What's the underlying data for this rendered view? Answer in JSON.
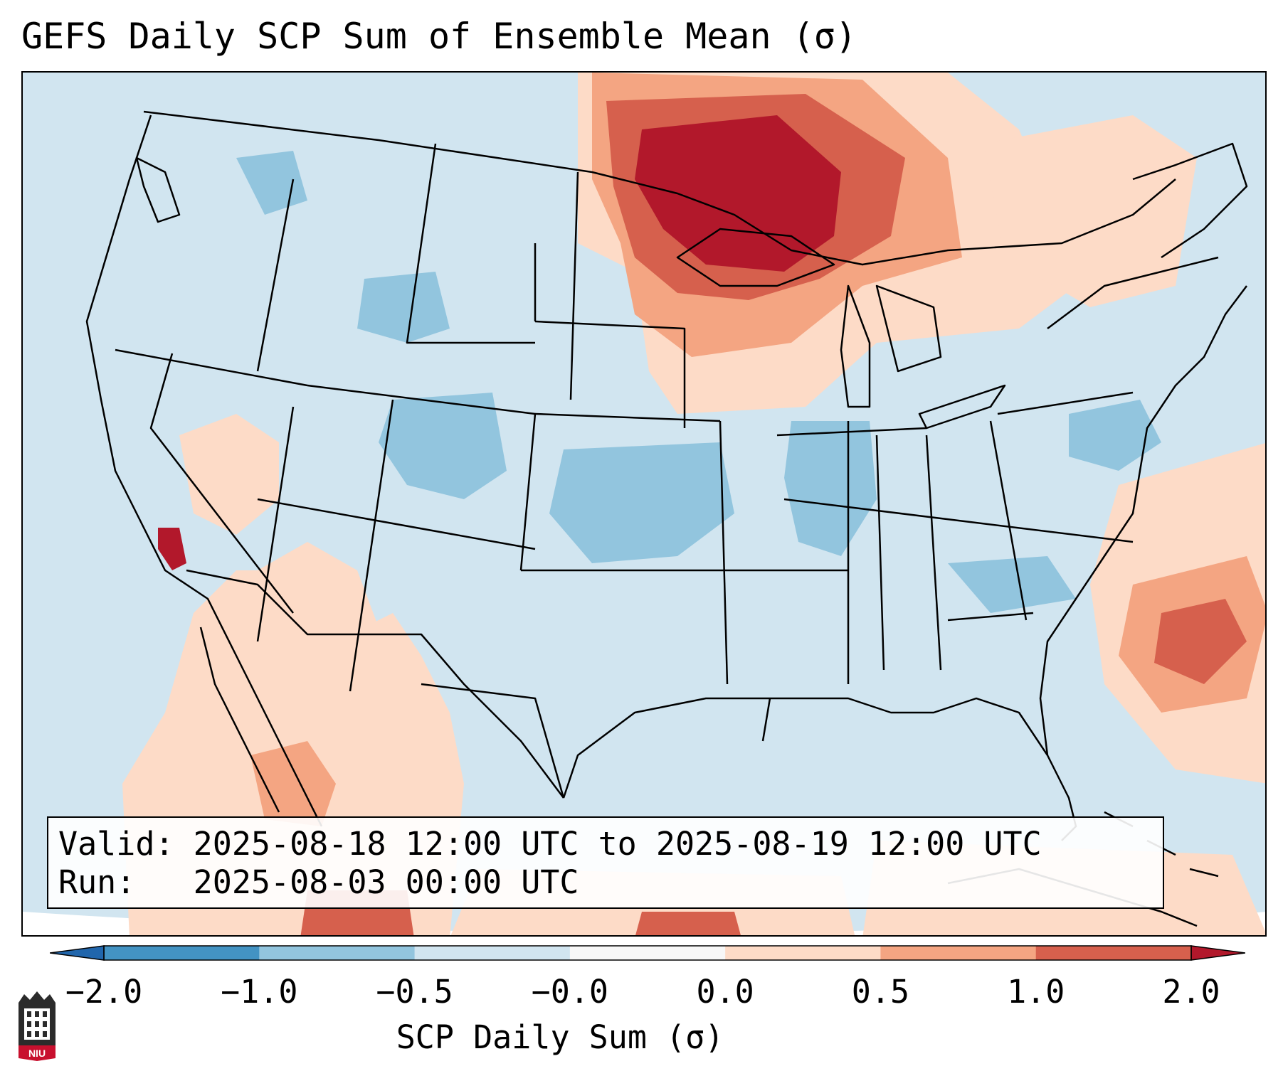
{
  "title": "GEFS Daily SCP Sum of Ensemble Mean (σ)",
  "info": {
    "valid_line": "Valid: 2025-08-18 12:00 UTC to 2025-08-19 12:00 UTC",
    "run_line": "Run:   2025-08-03 00:00 UTC"
  },
  "colorbar": {
    "label": "SCP Daily Sum (σ)",
    "ticks": [
      "−2.0",
      "−1.0",
      "−0.5",
      "−0.0",
      "0.0",
      "0.5",
      "1.0",
      "2.0"
    ],
    "colors": [
      "#4393c3",
      "#92c5de",
      "#d1e5f0",
      "#f7f7f7",
      "#fddbc7",
      "#f4a582",
      "#d6604d"
    ],
    "extend_low_color": "#2166ac",
    "extend_high_color": "#b2182b"
  },
  "logo": {
    "text": "NIU"
  },
  "map_colors": {
    "ocean": "#d1e5f0",
    "land_neutral": "#d1e5f0",
    "weak_negative": "#92c5de",
    "weak_positive": "#fddbc7",
    "moderate_positive": "#f4a582",
    "strong_positive": "#d6604d",
    "very_strong_positive": "#b2182b",
    "boundary": "#000000"
  }
}
